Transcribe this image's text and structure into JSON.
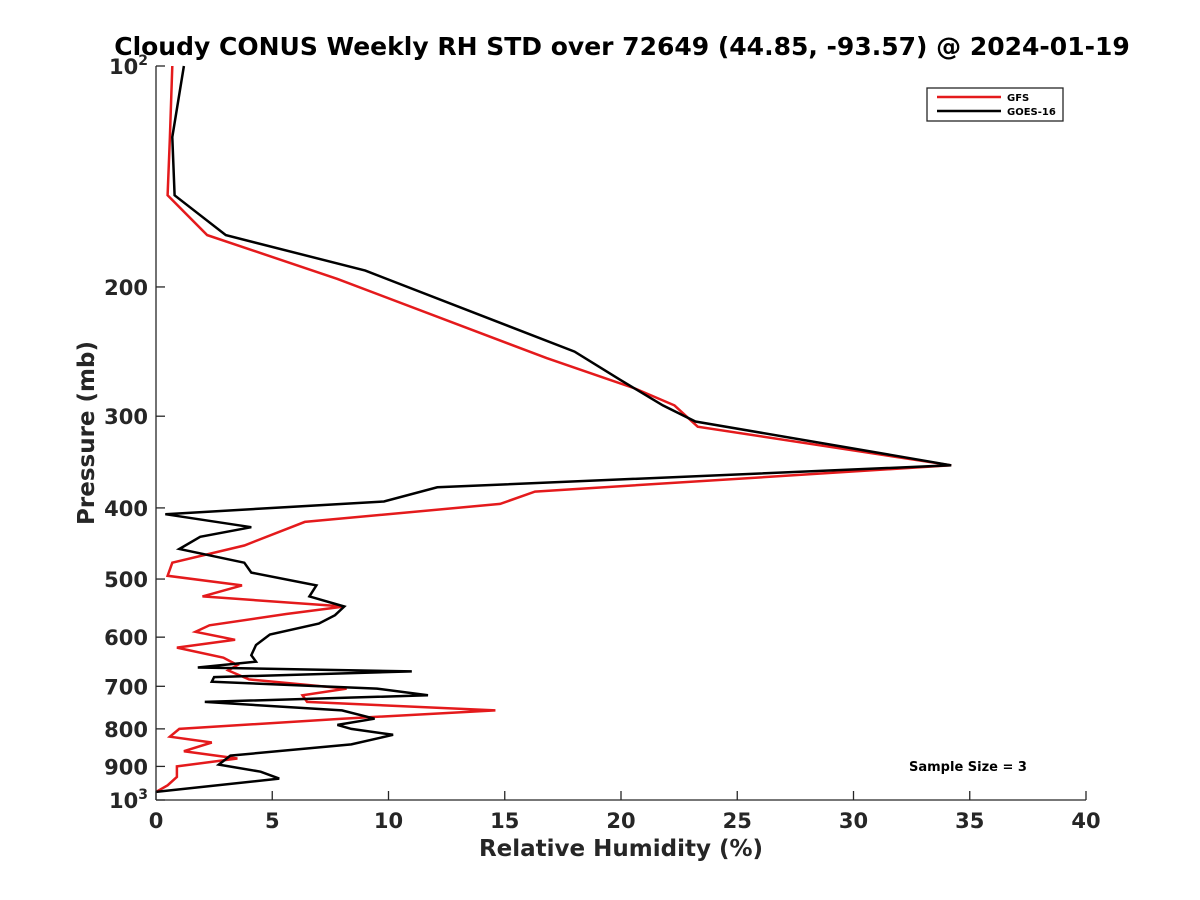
{
  "chart_data": {
    "type": "line",
    "title": "Cloudy CONUS Weekly RH STD over 72649 (44.85, -93.57) @ 2024-01-19",
    "xlabel": "Relative Humidity (%)",
    "ylabel": "Pressure (mb)",
    "xlim": [
      0,
      40
    ],
    "ylim": [
      100,
      1000
    ],
    "yscale": "log",
    "y_reversed": true,
    "grid": false,
    "legend_position": "top-right",
    "x_ticks": [
      0,
      5,
      10,
      15,
      20,
      25,
      30,
      35,
      40
    ],
    "y_ticks": [
      {
        "value": 100,
        "label": "10",
        "sup": "2"
      },
      {
        "value": 200,
        "label": "200",
        "sup": ""
      },
      {
        "value": 300,
        "label": "300",
        "sup": ""
      },
      {
        "value": 400,
        "label": "400",
        "sup": ""
      },
      {
        "value": 500,
        "label": "500",
        "sup": ""
      },
      {
        "value": 600,
        "label": "600",
        "sup": ""
      },
      {
        "value": 700,
        "label": "700",
        "sup": ""
      },
      {
        "value": 800,
        "label": "800",
        "sup": ""
      },
      {
        "value": 900,
        "label": "900",
        "sup": ""
      },
      {
        "value": 1000,
        "label": "10",
        "sup": "3"
      }
    ],
    "series": [
      {
        "name": "GFS",
        "color": "#e41a1c",
        "points": [
          [
            0.7,
            100
          ],
          [
            0.6,
            125
          ],
          [
            0.5,
            150
          ],
          [
            2.2,
            170
          ],
          [
            7.8,
            195
          ],
          [
            16.8,
            250
          ],
          [
            20.6,
            275
          ],
          [
            22.3,
            290
          ],
          [
            23.3,
            310
          ],
          [
            34.2,
            350
          ],
          [
            16.3,
            380
          ],
          [
            14.8,
            395
          ],
          [
            6.4,
            418
          ],
          [
            3.8,
            450
          ],
          [
            0.7,
            475
          ],
          [
            0.5,
            495
          ],
          [
            3.7,
            510
          ],
          [
            2.0,
            528
          ],
          [
            8.1,
            545
          ],
          [
            5.6,
            558
          ],
          [
            2.3,
            578
          ],
          [
            1.7,
            590
          ],
          [
            3.4,
            605
          ],
          [
            0.9,
            620
          ],
          [
            2.9,
            640
          ],
          [
            3.5,
            655
          ],
          [
            3.1,
            666
          ],
          [
            4.0,
            685
          ],
          [
            8.2,
            705
          ],
          [
            6.3,
            720
          ],
          [
            6.5,
            735
          ],
          [
            14.6,
            755
          ],
          [
            8.0,
            775
          ],
          [
            1.0,
            800
          ],
          [
            0.6,
            820
          ],
          [
            2.4,
            835
          ],
          [
            1.2,
            858
          ],
          [
            3.5,
            878
          ],
          [
            0.9,
            900
          ],
          [
            0.9,
            930
          ],
          [
            0.5,
            955
          ],
          [
            0.0,
            975
          ]
        ]
      },
      {
        "name": "GOES-16",
        "color": "#000000",
        "points": [
          [
            1.2,
            100
          ],
          [
            0.7,
            125
          ],
          [
            0.8,
            150
          ],
          [
            3.0,
            170
          ],
          [
            9.0,
            190
          ],
          [
            18.0,
            245
          ],
          [
            20.0,
            268
          ],
          [
            21.8,
            290
          ],
          [
            23.2,
            305
          ],
          [
            34.2,
            350
          ],
          [
            12.1,
            375
          ],
          [
            9.8,
            392
          ],
          [
            0.4,
            408
          ],
          [
            4.1,
            425
          ],
          [
            1.9,
            438
          ],
          [
            1.0,
            455
          ],
          [
            3.8,
            475
          ],
          [
            4.1,
            490
          ],
          [
            6.9,
            510
          ],
          [
            6.6,
            528
          ],
          [
            8.1,
            545
          ],
          [
            7.7,
            560
          ],
          [
            7.0,
            575
          ],
          [
            4.9,
            595
          ],
          [
            4.3,
            615
          ],
          [
            4.1,
            635
          ],
          [
            4.3,
            648
          ],
          [
            1.8,
            660
          ],
          [
            11.0,
            668
          ],
          [
            2.5,
            680
          ],
          [
            2.4,
            690
          ],
          [
            9.5,
            705
          ],
          [
            11.7,
            720
          ],
          [
            2.1,
            735
          ],
          [
            8.0,
            755
          ],
          [
            9.4,
            775
          ],
          [
            7.8,
            790
          ],
          [
            8.4,
            800
          ],
          [
            10.2,
            815
          ],
          [
            8.4,
            840
          ],
          [
            3.2,
            870
          ],
          [
            2.7,
            895
          ],
          [
            4.5,
            915
          ],
          [
            5.3,
            935
          ],
          [
            0.0,
            975
          ]
        ]
      }
    ],
    "annotation": "Sample Size = 3"
  }
}
